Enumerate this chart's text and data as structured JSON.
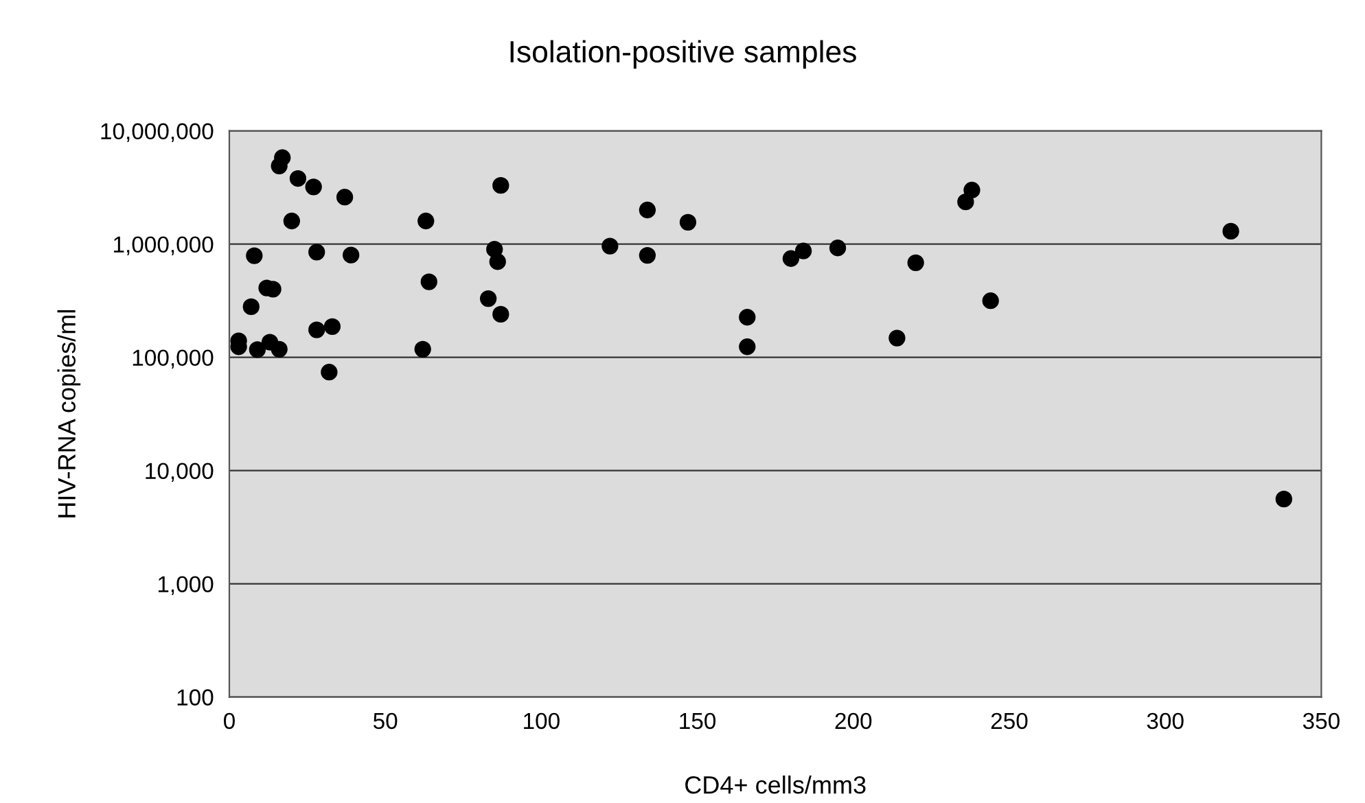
{
  "chart_data": {
    "type": "scatter",
    "title": "Isolation-positive samples",
    "xlabel": "CD4+ cells/mm3",
    "ylabel": "HIV-RNA copies/ml",
    "log": "y",
    "grid": "y",
    "marker": "circle",
    "xlim": [
      0,
      350
    ],
    "xticks": [
      0,
      50,
      100,
      150,
      200,
      250,
      300,
      350
    ],
    "ylim": [
      100,
      10000000
    ],
    "yticks": [
      {
        "value": 100,
        "label": "100"
      },
      {
        "value": 1000,
        "label": "1,000"
      },
      {
        "value": 10000,
        "label": "10,000"
      },
      {
        "value": 100000,
        "label": "100,000"
      },
      {
        "value": 1000000,
        "label": "1,000,000"
      },
      {
        "value": 10000000,
        "label": "10,000,000"
      }
    ],
    "series": [
      {
        "color": "#000000",
        "x": [
          17,
          16,
          22,
          27,
          37,
          20,
          63,
          87,
          8,
          28,
          39,
          85,
          86,
          64,
          12,
          14,
          83,
          7,
          87,
          28,
          33,
          3,
          3,
          9,
          13,
          16,
          62,
          32,
          134,
          147,
          122,
          134,
          180,
          184,
          195,
          220,
          166,
          166,
          214,
          238,
          236,
          244,
          321,
          338
        ],
        "values": [
          5800000,
          4900000,
          3800000,
          3200000,
          2600000,
          1600000,
          1600000,
          3300000,
          790000,
          850000,
          800000,
          900000,
          700000,
          465000,
          410000,
          400000,
          330000,
          280000,
          240000,
          175000,
          187000,
          140000,
          124000,
          117000,
          136000,
          118000,
          118000,
          74000,
          2000000,
          1560000,
          960000,
          795000,
          745000,
          870000,
          925000,
          685000,
          226000,
          124000,
          148000,
          3000000,
          2360000,
          316000,
          1300000,
          5600
        ]
      }
    ]
  }
}
